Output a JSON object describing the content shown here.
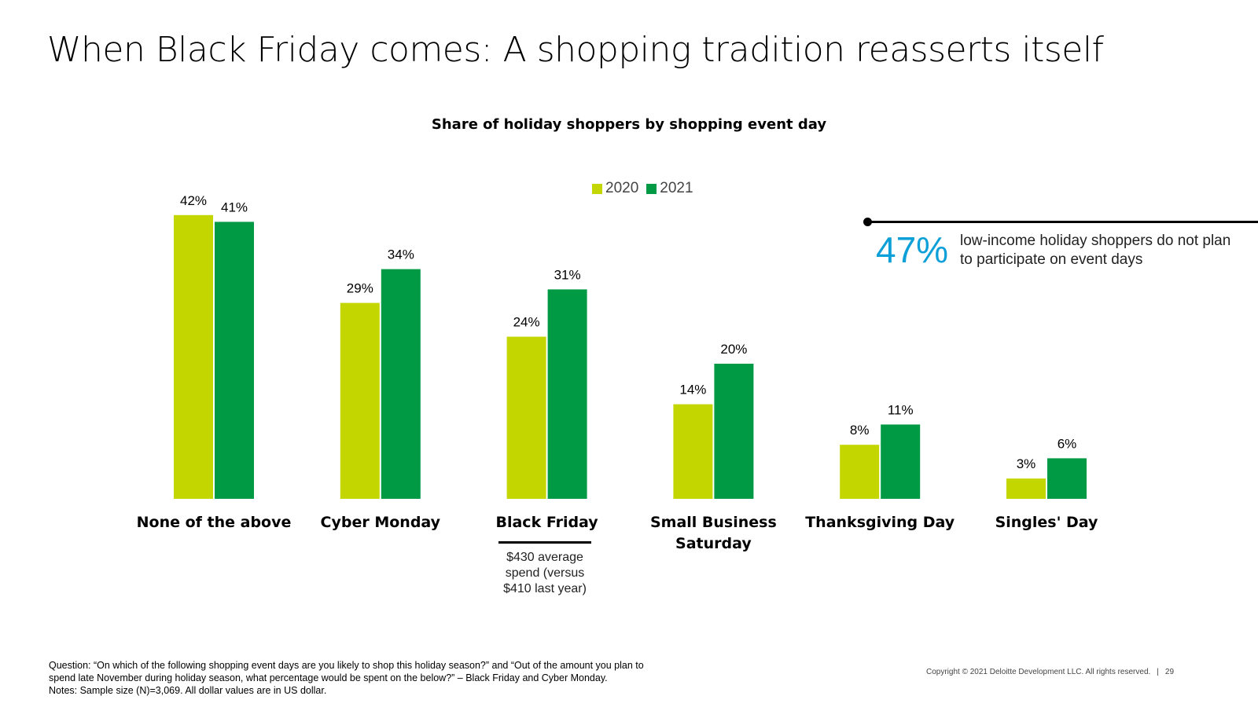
{
  "title": "When Black Friday comes: A shopping tradition reasserts itself",
  "colors": {
    "series_2020": "#c4d600",
    "series_2021": "#009a44",
    "callout": "#0d9fd8"
  },
  "chart_data": {
    "type": "bar",
    "title": "Share of holiday shoppers by shopping event day",
    "categories": [
      "None of the above",
      "Cyber Monday",
      "Black Friday",
      "Small Business Saturday",
      "Thanksgiving Day",
      "Singles' Day"
    ],
    "category_lines": [
      [
        "None of the above"
      ],
      [
        "Cyber Monday"
      ],
      [
        "Black Friday"
      ],
      [
        "Small Business",
        "Saturday"
      ],
      [
        "Thanksgiving Day"
      ],
      [
        "Singles' Day"
      ]
    ],
    "series": [
      {
        "name": "2020",
        "values": [
          42,
          29,
          24,
          14,
          8,
          3
        ],
        "labels": [
          "42%",
          "29%",
          "24%",
          "14%",
          "8%",
          "3%"
        ]
      },
      {
        "name": "2021",
        "values": [
          41,
          34,
          31,
          20,
          11,
          6
        ],
        "labels": [
          "41%",
          "34%",
          "31%",
          "20%",
          "11%",
          "6%"
        ]
      }
    ],
    "unit": "%",
    "ylim": [
      0,
      42
    ],
    "grid": false,
    "legend_position": "top-center"
  },
  "callout": {
    "value": "47%",
    "text": "low-income holiday shoppers do not plan to participate on event days"
  },
  "black_friday_note": [
    "$430 average",
    "spend (versus",
    "$410 last year)"
  ],
  "footnote": {
    "question_lines": [
      "Question: “On which of the following shopping event days are you likely to shop this holiday season?” and “Out of the amount you plan to",
      "spend late November during holiday season, what percentage would be spent on the below?” – Black Friday and Cyber Monday."
    ],
    "notes": "Notes: Sample size (N)=3,069. All dollar values are in US dollar."
  },
  "copyright": "Copyright © 2021 Deloitte Development LLC. All rights reserved.",
  "separator": "|",
  "page_number": "29"
}
